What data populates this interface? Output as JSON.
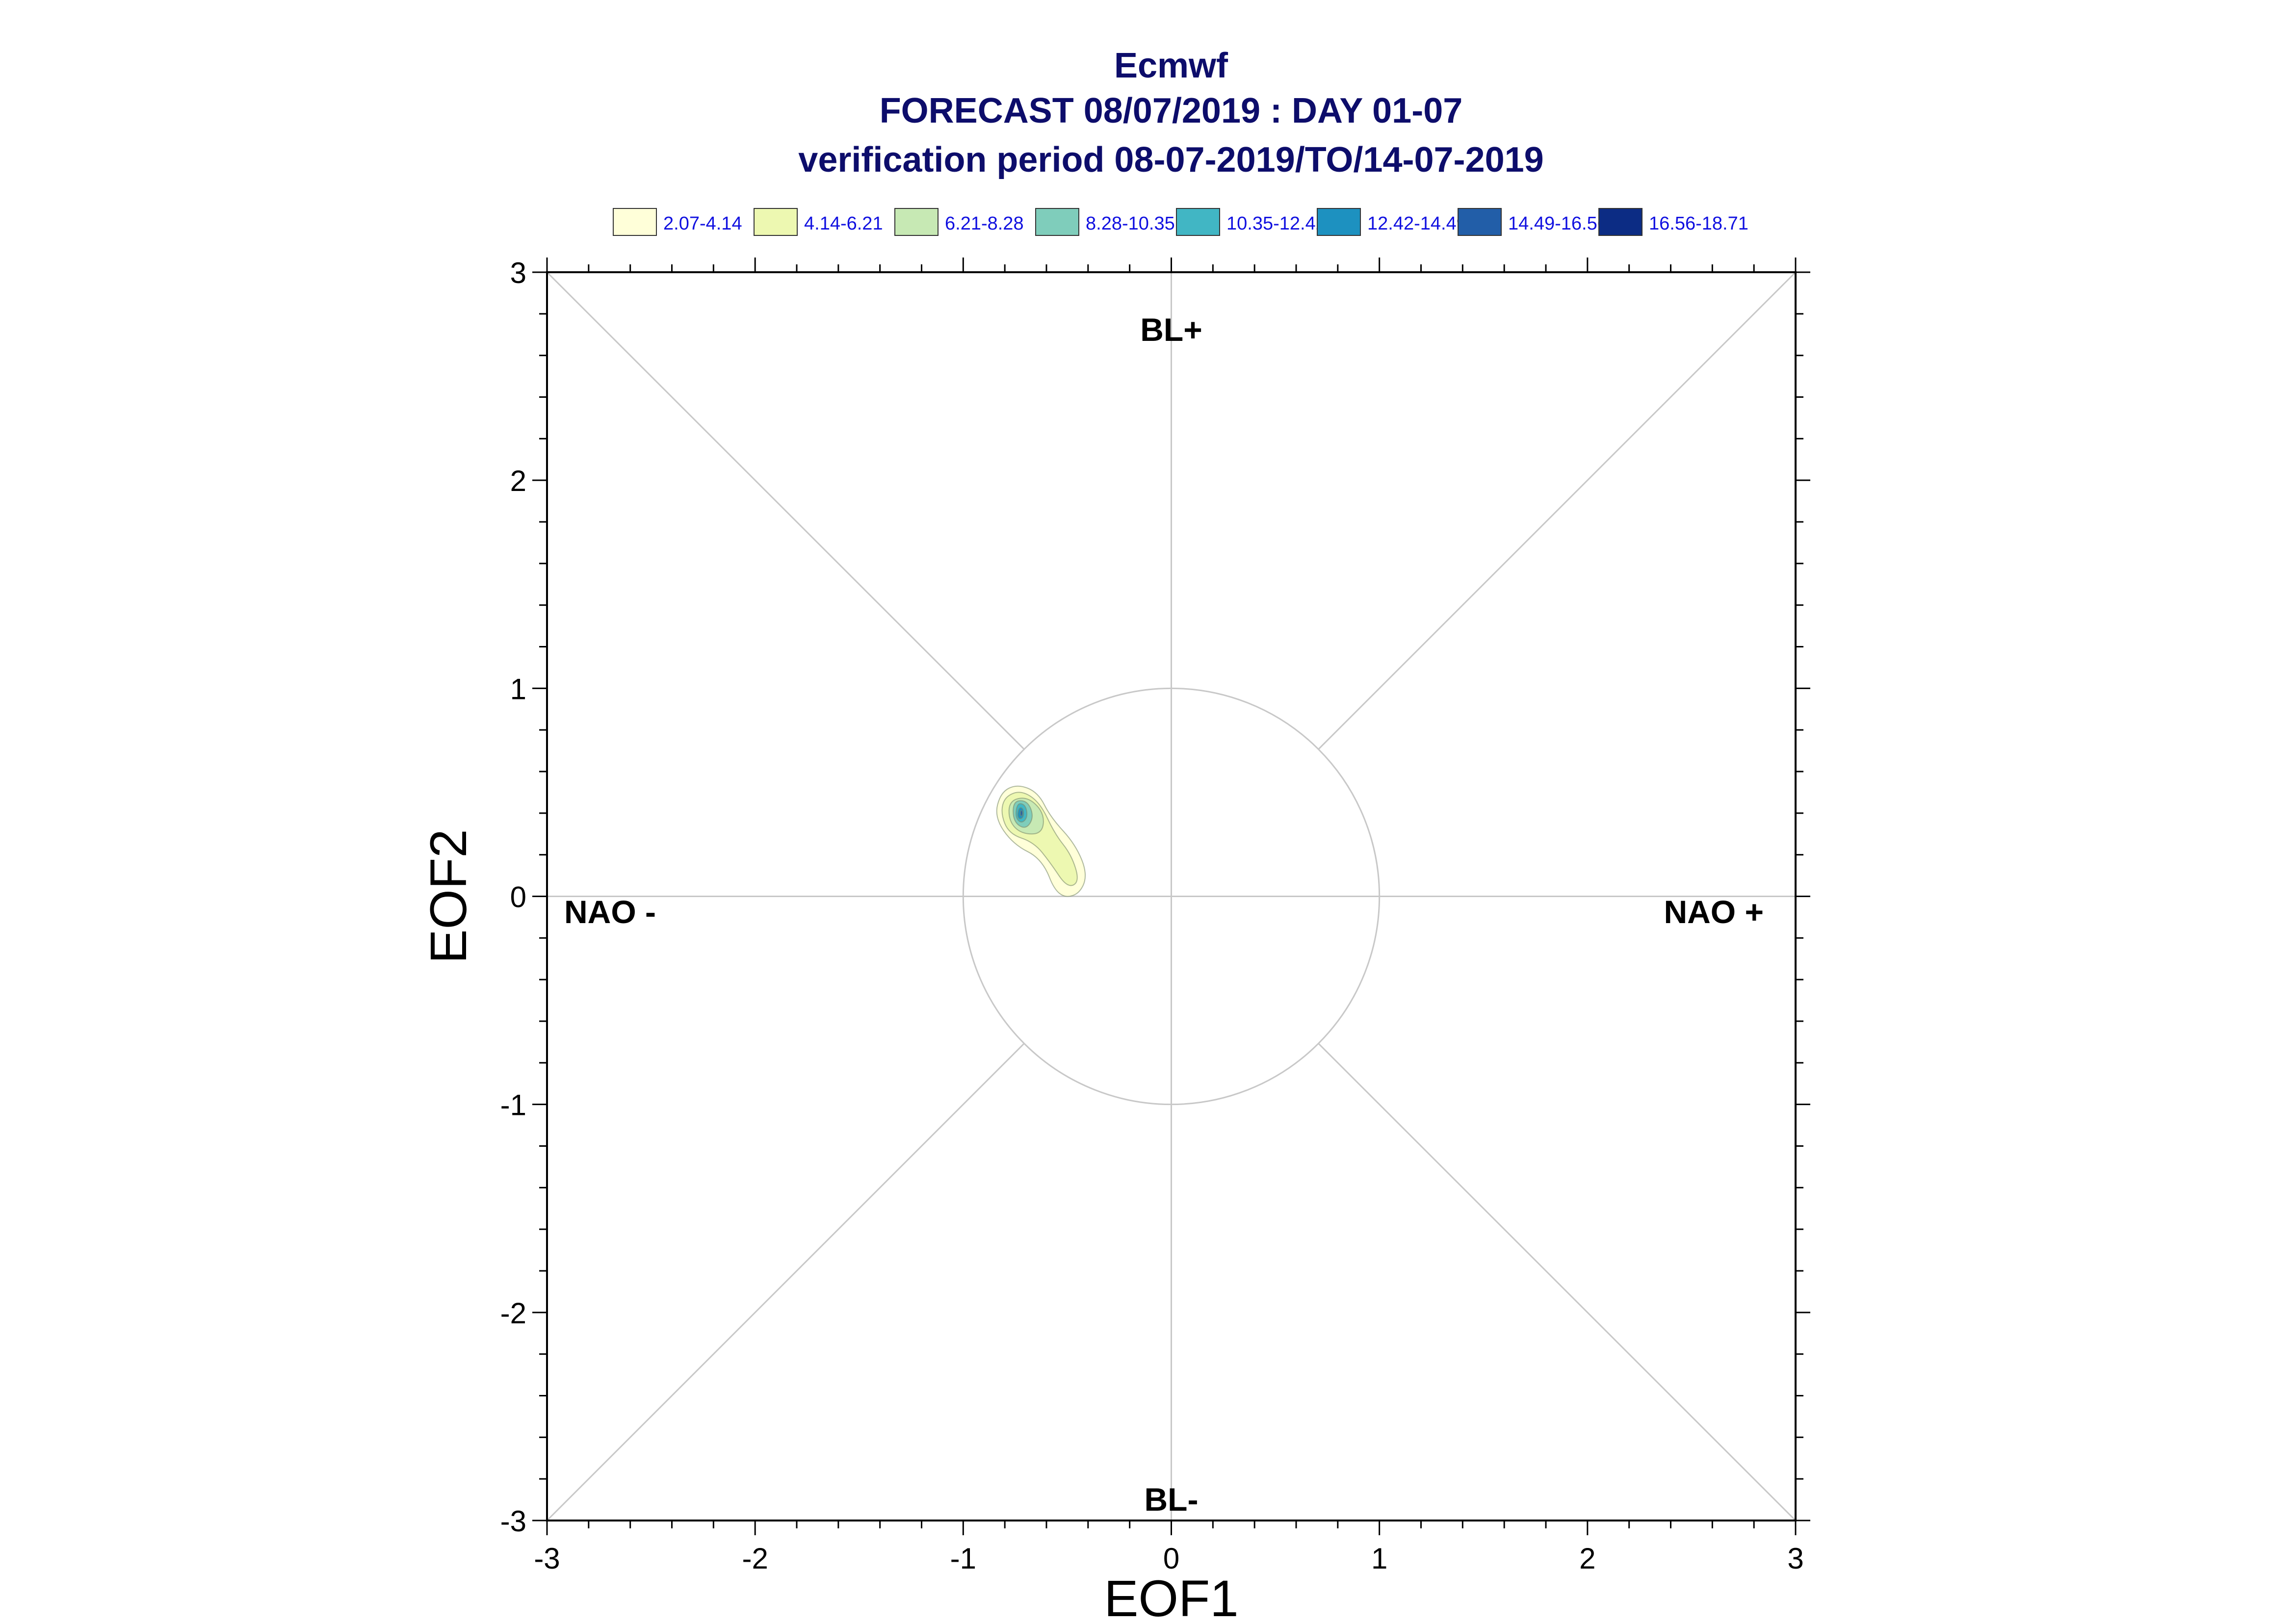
{
  "chart_data": {
    "type": "contour",
    "title_lines": [
      "Ecmwf",
      "FORECAST 08/07/2019 : DAY 01-07",
      "verification period 08-07-2019/TO/14-07-2019"
    ],
    "xlabel": "EOF1",
    "ylabel": "EOF2",
    "xlim": [
      -3,
      3
    ],
    "ylim": [
      -3,
      3
    ],
    "x_ticks": [
      "-3",
      "-2",
      "-1",
      "0",
      "1",
      "2",
      "3"
    ],
    "y_ticks": [
      "-3",
      "-2",
      "-1",
      "0",
      "1",
      "2",
      "3"
    ],
    "quadrant_labels": {
      "top": "BL+",
      "bottom": "BL-",
      "left": "NAO -",
      "right": "NAO +"
    },
    "reference_circle_radius": 1,
    "legend": [
      {
        "label": "2.07-4.14",
        "color": "#ffffd9"
      },
      {
        "label": "4.14-6.21",
        "color": "#edf8b1"
      },
      {
        "label": "6.21-8.28",
        "color": "#c7e9b4"
      },
      {
        "label": "8.28-10.35",
        "color": "#7fcdbb"
      },
      {
        "label": "10.35-12.42",
        "color": "#41b6c4"
      },
      {
        "label": "12.42-14.49",
        "color": "#1d91c0"
      },
      {
        "label": "14.49-16.56",
        "color": "#225ea8"
      },
      {
        "label": "16.56-18.71",
        "color": "#0c2c84"
      }
    ],
    "density_contours": [
      {
        "level": "2.07-4.14",
        "points": [
          [
            -0.82,
            0.5
          ],
          [
            -0.74,
            0.54
          ],
          [
            -0.64,
            0.5
          ],
          [
            -0.58,
            0.38
          ],
          [
            -0.46,
            0.25
          ],
          [
            -0.4,
            0.1
          ],
          [
            -0.45,
            0.0
          ],
          [
            -0.55,
            0.0
          ],
          [
            -0.62,
            0.18
          ],
          [
            -0.76,
            0.25
          ],
          [
            -0.85,
            0.38
          ]
        ]
      },
      {
        "level": "4.14-6.21",
        "points": [
          [
            -0.8,
            0.48
          ],
          [
            -0.72,
            0.51
          ],
          [
            -0.63,
            0.45
          ],
          [
            -0.56,
            0.3
          ],
          [
            -0.48,
            0.2
          ],
          [
            -0.44,
            0.07
          ],
          [
            -0.5,
            0.04
          ],
          [
            -0.58,
            0.16
          ],
          [
            -0.66,
            0.26
          ],
          [
            -0.78,
            0.3
          ],
          [
            -0.82,
            0.4
          ]
        ]
      },
      {
        "level": "6.21-8.28",
        "points": [
          [
            -0.78,
            0.46
          ],
          [
            -0.69,
            0.48
          ],
          [
            -0.61,
            0.4
          ],
          [
            -0.62,
            0.3
          ],
          [
            -0.72,
            0.3
          ],
          [
            -0.78,
            0.36
          ]
        ]
      },
      {
        "level": "8.28-10.35",
        "points": [
          [
            -0.76,
            0.46
          ],
          [
            -0.69,
            0.46
          ],
          [
            -0.66,
            0.38
          ],
          [
            -0.7,
            0.32
          ],
          [
            -0.76,
            0.36
          ]
        ]
      },
      {
        "level": "10.35-12.42",
        "points": [
          [
            -0.74,
            0.45
          ],
          [
            -0.7,
            0.44
          ],
          [
            -0.69,
            0.38
          ],
          [
            -0.72,
            0.35
          ],
          [
            -0.75,
            0.38
          ]
        ]
      },
      {
        "level": "12.42-14.49",
        "points": [
          [
            -0.73,
            0.43
          ],
          [
            -0.71,
            0.42
          ],
          [
            -0.71,
            0.38
          ],
          [
            -0.73,
            0.37
          ],
          [
            -0.74,
            0.39
          ]
        ]
      },
      {
        "level": "14.49-16.56",
        "points": [
          [
            -0.725,
            0.415
          ],
          [
            -0.715,
            0.41
          ],
          [
            -0.715,
            0.39
          ],
          [
            -0.725,
            0.385
          ]
        ]
      }
    ]
  }
}
